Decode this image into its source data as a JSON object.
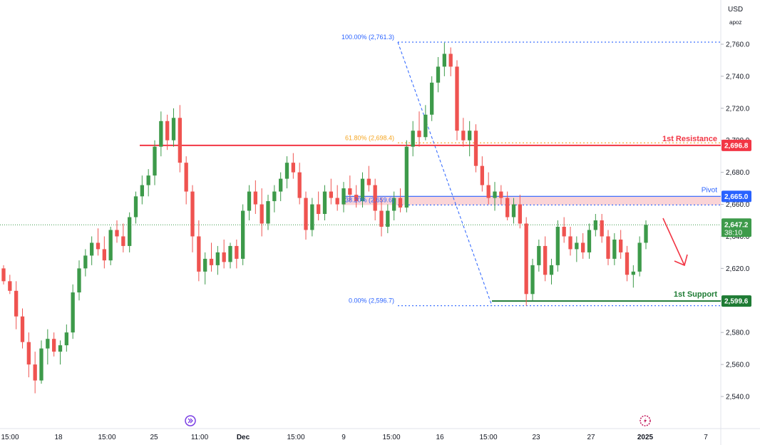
{
  "header": {
    "currency": "USD",
    "scale_mode": "apoz"
  },
  "colors": {
    "up": "#3d9a4a",
    "down": "#ef5350",
    "resistance": "#f23645",
    "pivot": "#2962ff",
    "support": "#1e7b34",
    "fib": "#2962ff",
    "fib618": "#f5a623",
    "zone": "#f8c6c9",
    "last_price": "#3d9a4a",
    "arrow": "#f23645"
  },
  "chart_data": {
    "type": "candlestick",
    "symbol_unit": "USD",
    "ylim": [
      2525,
      2775
    ],
    "y_ticks": [
      "2,540.0",
      "2,560.0",
      "2,580.0",
      "2,600.0",
      "2,620.0",
      "2,640.0",
      "2,660.0",
      "2,680.0",
      "2,700.0",
      "2,720.0",
      "2,740.0",
      "2,760.0"
    ],
    "x_ticks": [
      "15:00",
      "18",
      "15:00",
      "25",
      "11:00",
      "Dec",
      "15:00",
      "9",
      "15:00",
      "16",
      "15:00",
      "23",
      "27",
      "2025",
      "7"
    ],
    "levels": {
      "resistance": {
        "label": "1st Resistance",
        "value": 2696.8,
        "tag": "2,696.8"
      },
      "pivot": {
        "label": "Pivot",
        "value": 2665.0,
        "tag": "2,665.0"
      },
      "support": {
        "label": "1st Support",
        "value": 2599.6,
        "tag": "2,599.6"
      }
    },
    "fib": {
      "high": {
        "label": "100.00% (2,761.3)",
        "value": 2761.3
      },
      "fib618": {
        "label": "61.80% (2,698.4)",
        "value": 2698.4
      },
      "fib382": {
        "label": "38.20% (2,659.6)",
        "value": 2659.6
      },
      "low": {
        "label": "0.00% (2,596.7)",
        "value": 2596.7
      }
    },
    "last_price": {
      "value": 2647.2,
      "tag": "2,647.2",
      "countdown": "38:10"
    },
    "candles": [
      [
        2620,
        2622,
        2610,
        2612
      ],
      [
        2612,
        2616,
        2604,
        2606
      ],
      [
        2606,
        2612,
        2582,
        2590
      ],
      [
        2590,
        2595,
        2570,
        2574
      ],
      [
        2574,
        2580,
        2552,
        2560
      ],
      [
        2560,
        2568,
        2542,
        2550
      ],
      [
        2550,
        2575,
        2548,
        2570
      ],
      [
        2570,
        2582,
        2560,
        2576
      ],
      [
        2576,
        2580,
        2565,
        2568
      ],
      [
        2568,
        2575,
        2560,
        2572
      ],
      [
        2572,
        2585,
        2568,
        2580
      ],
      [
        2580,
        2610,
        2576,
        2605
      ],
      [
        2605,
        2625,
        2600,
        2620
      ],
      [
        2620,
        2632,
        2615,
        2628
      ],
      [
        2628,
        2640,
        2622,
        2636
      ],
      [
        2636,
        2645,
        2628,
        2632
      ],
      [
        2632,
        2640,
        2620,
        2625
      ],
      [
        2625,
        2646,
        2622,
        2644
      ],
      [
        2644,
        2650,
        2636,
        2640
      ],
      [
        2640,
        2648,
        2630,
        2634
      ],
      [
        2634,
        2655,
        2630,
        2652
      ],
      [
        2652,
        2668,
        2648,
        2665
      ],
      [
        2665,
        2678,
        2660,
        2672
      ],
      [
        2672,
        2682,
        2665,
        2678
      ],
      [
        2678,
        2700,
        2672,
        2696
      ],
      [
        2696,
        2718,
        2690,
        2712
      ],
      [
        2712,
        2716,
        2694,
        2700
      ],
      [
        2700,
        2720,
        2696,
        2714
      ],
      [
        2714,
        2722,
        2680,
        2686
      ],
      [
        2686,
        2690,
        2660,
        2668
      ],
      [
        2668,
        2672,
        2630,
        2640
      ],
      [
        2640,
        2650,
        2612,
        2618
      ],
      [
        2618,
        2630,
        2610,
        2626
      ],
      [
        2626,
        2636,
        2618,
        2622
      ],
      [
        2622,
        2634,
        2616,
        2630
      ],
      [
        2630,
        2638,
        2620,
        2624
      ],
      [
        2624,
        2636,
        2620,
        2634
      ],
      [
        2634,
        2638,
        2620,
        2626
      ],
      [
        2626,
        2660,
        2622,
        2656
      ],
      [
        2656,
        2672,
        2650,
        2668
      ],
      [
        2668,
        2675,
        2654,
        2660
      ],
      [
        2660,
        2670,
        2640,
        2648
      ],
      [
        2648,
        2666,
        2644,
        2662
      ],
      [
        2662,
        2672,
        2655,
        2668
      ],
      [
        2668,
        2680,
        2662,
        2676
      ],
      [
        2676,
        2690,
        2670,
        2686
      ],
      [
        2686,
        2692,
        2676,
        2680
      ],
      [
        2680,
        2686,
        2660,
        2664
      ],
      [
        2664,
        2668,
        2638,
        2644
      ],
      [
        2644,
        2664,
        2640,
        2660
      ],
      [
        2660,
        2668,
        2650,
        2654
      ],
      [
        2654,
        2672,
        2650,
        2668
      ],
      [
        2668,
        2676,
        2660,
        2664
      ],
      [
        2664,
        2672,
        2656,
        2660
      ],
      [
        2660,
        2674,
        2655,
        2670
      ],
      [
        2670,
        2678,
        2662,
        2666
      ],
      [
        2666,
        2672,
        2658,
        2662
      ],
      [
        2662,
        2680,
        2658,
        2676
      ],
      [
        2676,
        2684,
        2668,
        2672
      ],
      [
        2672,
        2676,
        2650,
        2656
      ],
      [
        2656,
        2664,
        2640,
        2646
      ],
      [
        2646,
        2660,
        2642,
        2656
      ],
      [
        2656,
        2668,
        2650,
        2664
      ],
      [
        2664,
        2670,
        2655,
        2658
      ],
      [
        2658,
        2700,
        2655,
        2696
      ],
      [
        2696,
        2712,
        2690,
        2706
      ],
      [
        2706,
        2718,
        2696,
        2702
      ],
      [
        2702,
        2722,
        2700,
        2716
      ],
      [
        2716,
        2740,
        2712,
        2736
      ],
      [
        2736,
        2752,
        2730,
        2746
      ],
      [
        2746,
        2761,
        2740,
        2754
      ],
      [
        2754,
        2758,
        2740,
        2746
      ],
      [
        2746,
        2750,
        2700,
        2706
      ],
      [
        2706,
        2714,
        2696,
        2700
      ],
      [
        2700,
        2712,
        2690,
        2706
      ],
      [
        2706,
        2710,
        2680,
        2684
      ],
      [
        2684,
        2690,
        2668,
        2672
      ],
      [
        2672,
        2680,
        2660,
        2664
      ],
      [
        2664,
        2674,
        2656,
        2668
      ],
      [
        2668,
        2672,
        2660,
        2664
      ],
      [
        2664,
        2668,
        2650,
        2652
      ],
      [
        2652,
        2664,
        2648,
        2660
      ],
      [
        2660,
        2666,
        2645,
        2648
      ],
      [
        2648,
        2652,
        2596.7,
        2604
      ],
      [
        2604,
        2626,
        2600,
        2622
      ],
      [
        2622,
        2638,
        2618,
        2634
      ],
      [
        2634,
        2640,
        2612,
        2616
      ],
      [
        2616,
        2626,
        2610,
        2622
      ],
      [
        2622,
        2650,
        2618,
        2646
      ],
      [
        2646,
        2652,
        2636,
        2640
      ],
      [
        2640,
        2646,
        2628,
        2632
      ],
      [
        2632,
        2640,
        2624,
        2636
      ],
      [
        2636,
        2642,
        2626,
        2630
      ],
      [
        2630,
        2648,
        2626,
        2644
      ],
      [
        2644,
        2654,
        2640,
        2650
      ],
      [
        2650,
        2654,
        2636,
        2640
      ],
      [
        2640,
        2644,
        2622,
        2626
      ],
      [
        2626,
        2642,
        2622,
        2638
      ],
      [
        2638,
        2644,
        2626,
        2630
      ],
      [
        2630,
        2634,
        2612,
        2616
      ],
      [
        2616,
        2622,
        2608,
        2618
      ],
      [
        2618,
        2640,
        2615,
        2636
      ],
      [
        2636,
        2650,
        2632,
        2647.2
      ]
    ]
  }
}
